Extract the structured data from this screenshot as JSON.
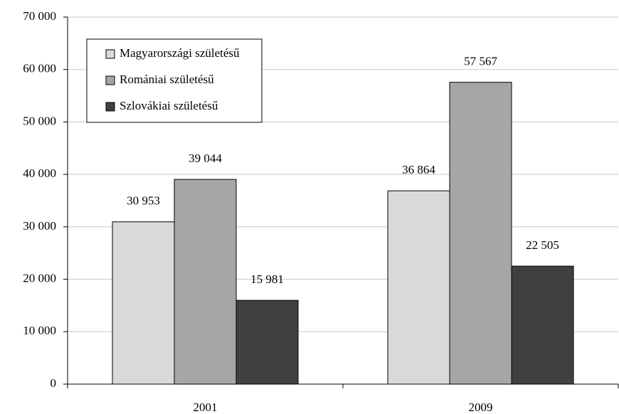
{
  "chart_data": {
    "type": "bar",
    "categories": [
      "2001",
      "2009"
    ],
    "series": [
      {
        "name": "Magyarországi születésű",
        "color": "#d9d9d9",
        "values": [
          30953,
          36864
        ],
        "value_labels": [
          "30 953",
          "36 864"
        ]
      },
      {
        "name": "Romániai születésű",
        "color": "#a6a6a6",
        "values": [
          39044,
          57567
        ],
        "value_labels": [
          "39 044",
          "57 567"
        ]
      },
      {
        "name": "Szlovákiai születésű",
        "color": "#404040",
        "values": [
          15981,
          22505
        ],
        "value_labels": [
          "15 981",
          "22 505"
        ]
      }
    ],
    "ylim": [
      0,
      70000
    ],
    "yticks": [
      0,
      {
        "value": 10000,
        "label": "10 000"
      },
      {
        "value": 20000,
        "label": "20 000"
      },
      {
        "value": 30000,
        "label": "30 000"
      },
      {
        "value": 40000,
        "label": "40 000"
      },
      {
        "value": 50000,
        "label": "50 000"
      },
      {
        "value": 60000,
        "label": "60 000"
      },
      {
        "value": 70000,
        "label": "70 000"
      }
    ],
    "grid": true,
    "legend": "upper left"
  }
}
